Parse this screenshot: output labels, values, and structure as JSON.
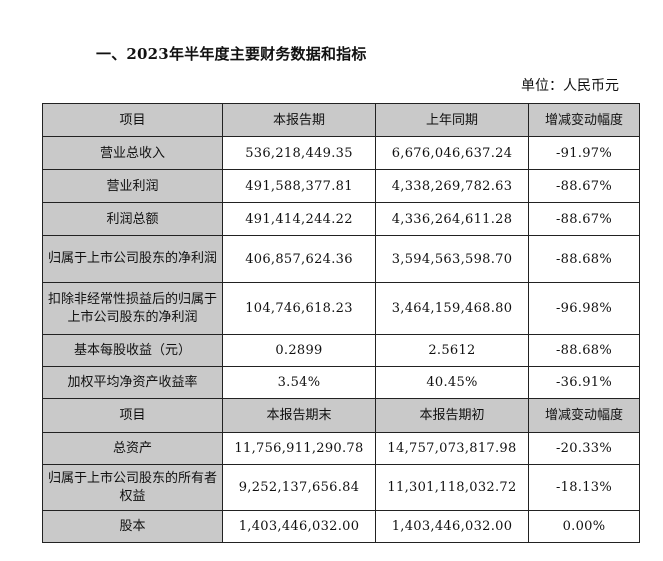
{
  "heading": "一、2023年半年度主要财务数据和指标",
  "unit": "单位：人民币元",
  "header1": [
    "项目",
    "本报告期",
    "上年同期",
    "增减变动幅度"
  ],
  "rows1": [
    {
      "label": "营业总收入",
      "current": "536,218,449.35",
      "prior": "6,676,046,637.24",
      "change": "-91.97%"
    },
    {
      "label": "营业利润",
      "current": "491,588,377.81",
      "prior": "4,338,269,782.63",
      "change": "-88.67%"
    },
    {
      "label": "利润总额",
      "current": "491,414,244.22",
      "prior": "4,336,264,611.28",
      "change": "-88.67%"
    },
    {
      "label": "归属于上市公司股东的净利润",
      "current": "406,857,624.36",
      "prior": "3,594,563,598.70",
      "change": "-88.68%"
    },
    {
      "label": "扣除非经常性损益后的归属于上市公司股东的净利润",
      "current": "104,746,618.23",
      "prior": "3,464,159,468.80",
      "change": "-96.98%"
    },
    {
      "label": "基本每股收益（元）",
      "current": "0.2899",
      "prior": "2.5612",
      "change": "-88.68%"
    },
    {
      "label": "加权平均净资产收益率",
      "current": "3.54%",
      "prior": "40.45%",
      "change": "-36.91%"
    }
  ],
  "header2": [
    "项目",
    "本报告期末",
    "本报告期初",
    "增减变动幅度"
  ],
  "rows2": [
    {
      "label": "总资产",
      "current": "11,756,911,290.78",
      "prior": "14,757,073,817.98",
      "change": "-20.33%"
    },
    {
      "label": "归属于上市公司股东的所有者权益",
      "current": "9,252,137,656.84",
      "prior": "11,301,118,032.72",
      "change": "-18.13%"
    },
    {
      "label": "股本",
      "current": "1,403,446,032.00",
      "prior": "1,403,446,032.00",
      "change": "0.00%"
    }
  ]
}
